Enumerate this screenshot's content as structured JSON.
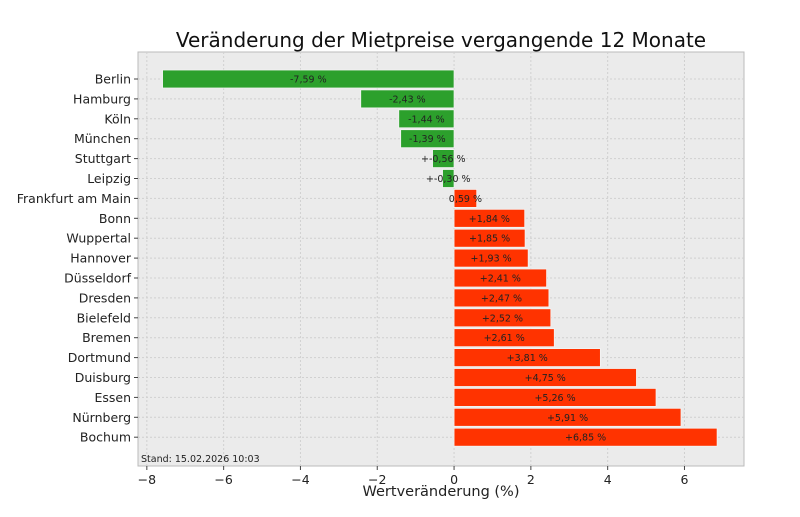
{
  "chart_data": {
    "type": "bar",
    "orientation": "horizontal",
    "title": "Veränderung der Mietpreise vergangende 12 Monate",
    "xlabel": "Wertveränderung (%)",
    "ylabel": "",
    "xlim": [
      -8.23,
      7.55
    ],
    "xticks": [
      -8,
      -6,
      -4,
      -2,
      0,
      2,
      4,
      6
    ],
    "xtick_labels": [
      "−8",
      "−6",
      "−4",
      "−2",
      "0",
      "2",
      "4",
      "6"
    ],
    "grid": true,
    "categories": [
      "Berlin",
      "Hamburg",
      "Köln",
      "München",
      "Stuttgart",
      "Leipzig",
      "Frankfurt am Main",
      "Bonn",
      "Wuppertal",
      "Hannover",
      "Düsseldorf",
      "Dresden",
      "Bielefeld",
      "Bremen",
      "Dortmund",
      "Duisburg",
      "Essen",
      "Nürnberg",
      "Bochum"
    ],
    "values": [
      -7.59,
      -2.43,
      -1.44,
      -1.39,
      -0.56,
      -0.3,
      0.59,
      1.84,
      1.85,
      1.93,
      2.41,
      2.47,
      2.52,
      2.61,
      3.81,
      4.75,
      5.26,
      5.91,
      6.85
    ],
    "data_labels": [
      "-7,59 %",
      "-2,43 %",
      "-1,44 %",
      "-1,39 %",
      "+-0,56 %",
      "+-0,30 %",
      "0,59 %",
      "+1,84 %",
      "+1,85 %",
      "+1,93 %",
      "+2,41 %",
      "+2,47 %",
      "+2,52 %",
      "+2,61 %",
      "+3,81 %",
      "+4,75 %",
      "+5,26 %",
      "+5,91 %",
      "+6,85 %"
    ],
    "colors": {
      "negative": "#2ca02c",
      "positive": "#ff3300",
      "background": "#ebebeb"
    },
    "annotation": "Stand: 15.02.2026 10:03"
  }
}
